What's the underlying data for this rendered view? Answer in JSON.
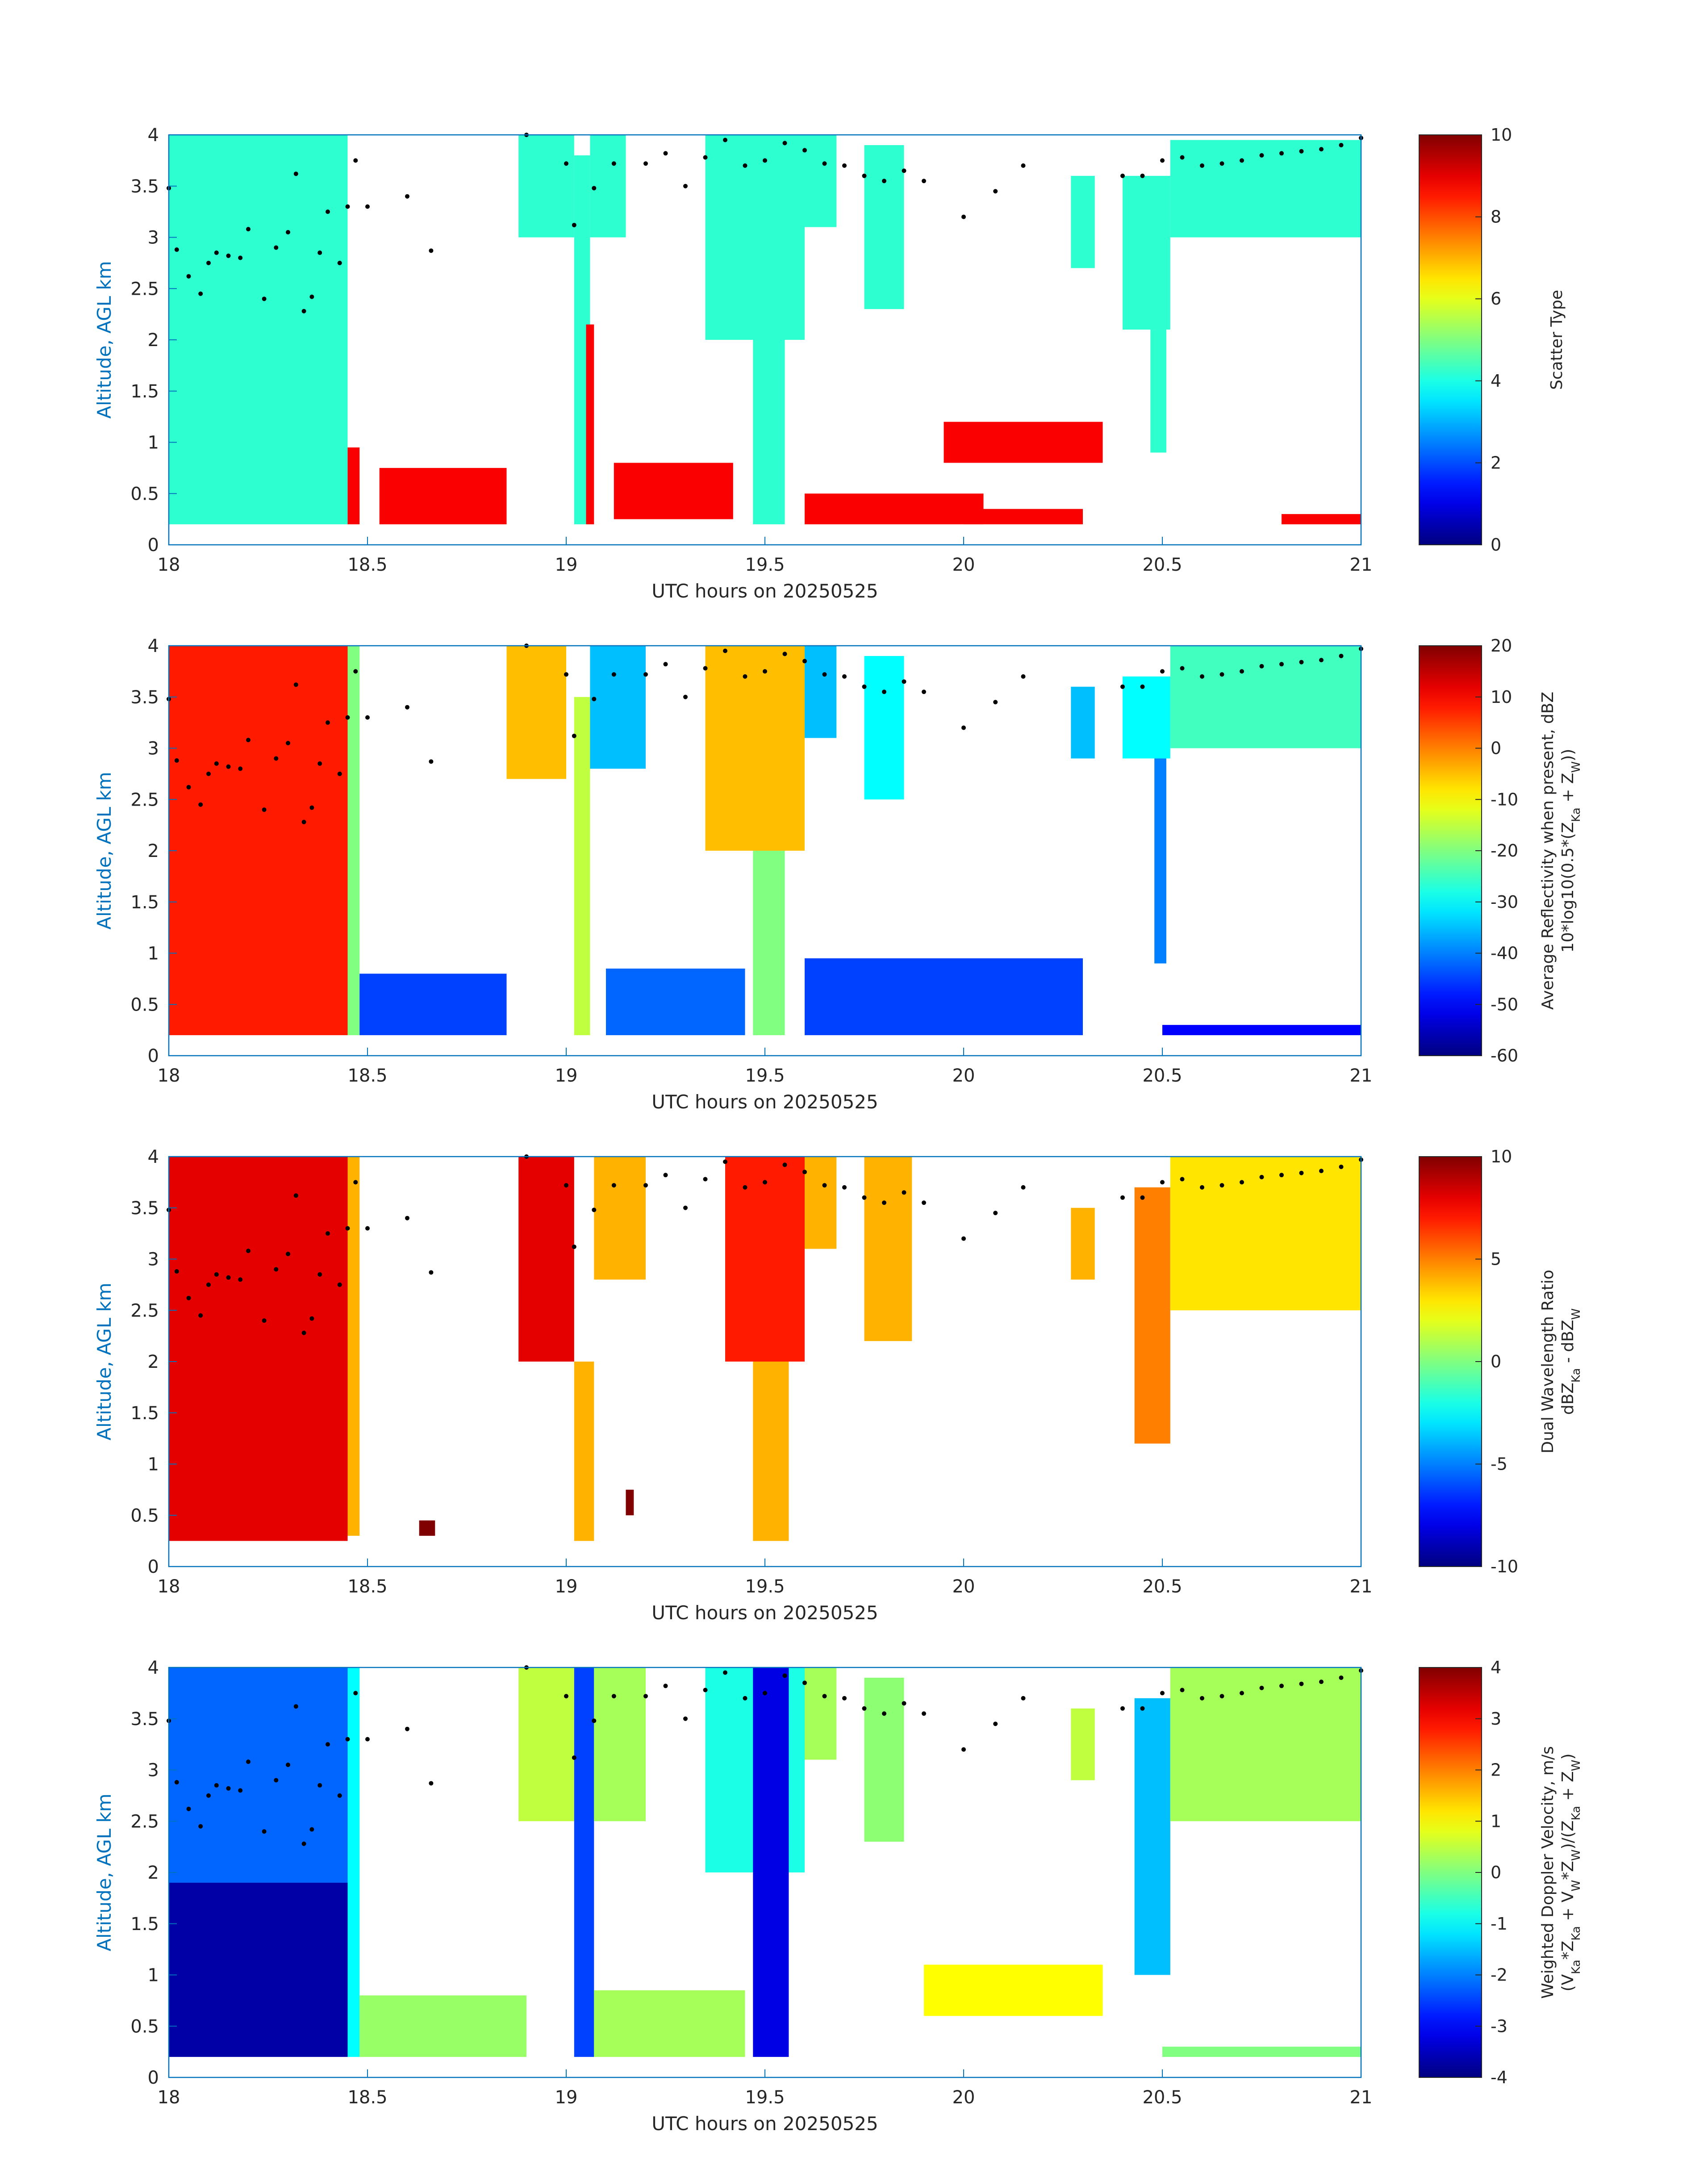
{
  "figure": {
    "x_ticks": [
      "18",
      "18.5",
      "19",
      "19.5",
      "20",
      "20.5",
      "21"
    ],
    "y_ticks": [
      "0",
      "0.5",
      "1",
      "1.5",
      "2",
      "2.5",
      "3",
      "3.5",
      "4"
    ],
    "xlabel": "UTC hours on 20250525",
    "ylabel": "Altitude, AGL km",
    "axis_color": "#0072BD",
    "cloud_top_dot_color": "#000000"
  },
  "panels": [
    {
      "cbar_label_lines": [
        "Scatter Type"
      ],
      "cbar_ticks": [
        "0",
        "2",
        "4",
        "6",
        "8",
        "10"
      ]
    },
    {
      "cbar_label_lines": [
        "Average Reflectivity when present, dBZ",
        "10*log10(0.5*(Z",
        "Ka",
        " + Z",
        "W",
        "))"
      ],
      "cbar_ticks": [
        "-60",
        "-50",
        "-40",
        "-30",
        "-20",
        "-10",
        "0",
        "10",
        "20"
      ]
    },
    {
      "cbar_label_lines": [
        "Dual Wavelength Ratio",
        "dBZ",
        "Ka",
        " - dBZ",
        "W"
      ],
      "cbar_ticks": [
        "-10",
        "-5",
        "0",
        "5",
        "10"
      ]
    },
    {
      "cbar_label_lines": [
        "Weighted Doppler Velocity, m/s",
        "(V",
        "Ka",
        "*Z",
        "Ka",
        " + V",
        "W",
        "*Z",
        "W",
        ")/(Z",
        "Ka",
        " + Z",
        "W",
        ")"
      ],
      "cbar_ticks": [
        "-4",
        "-3",
        "-2",
        "-1",
        "0",
        "1",
        "2",
        "3",
        "4"
      ]
    }
  ],
  "chart_data": [
    {
      "type": "heatmap",
      "title": "",
      "xlabel": "UTC hours on 20250525",
      "ylabel": "Altitude, AGL km",
      "xlim": [
        18,
        21
      ],
      "ylim": [
        0,
        4
      ],
      "clim": [
        0,
        10
      ],
      "colorbar_label": "Scatter Type",
      "colormap": "jet",
      "regions": [
        {
          "x": [
            18.0,
            18.45
          ],
          "y": [
            0.2,
            4.0
          ],
          "value": 4.2
        },
        {
          "x": [
            18.45,
            18.48
          ],
          "y": [
            0.2,
            0.95
          ],
          "value": 8.8
        },
        {
          "x": [
            18.53,
            18.85
          ],
          "y": [
            0.2,
            0.75
          ],
          "value": 8.8
        },
        {
          "x": [
            18.88,
            19.02
          ],
          "y": [
            3.0,
            4.0
          ],
          "value": 4.2
        },
        {
          "x": [
            19.02,
            19.06
          ],
          "y": [
            0.2,
            3.8
          ],
          "value": 4.2
        },
        {
          "x": [
            19.06,
            19.15
          ],
          "y": [
            3.0,
            4.0
          ],
          "value": 4.2
        },
        {
          "x": [
            19.05,
            19.07
          ],
          "y": [
            0.2,
            2.15
          ],
          "value": 8.8
        },
        {
          "x": [
            19.12,
            19.42
          ],
          "y": [
            0.25,
            0.8
          ],
          "value": 8.8
        },
        {
          "x": [
            19.35,
            19.6
          ],
          "y": [
            2.0,
            4.0
          ],
          "value": 4.2
        },
        {
          "x": [
            19.47,
            19.55
          ],
          "y": [
            0.2,
            2.0
          ],
          "value": 4.2
        },
        {
          "x": [
            19.6,
            19.68
          ],
          "y": [
            3.1,
            4.0
          ],
          "value": 4.2
        },
        {
          "x": [
            19.75,
            19.85
          ],
          "y": [
            2.3,
            3.9
          ],
          "value": 4.2
        },
        {
          "x": [
            19.6,
            20.05
          ],
          "y": [
            0.2,
            0.5
          ],
          "value": 8.8
        },
        {
          "x": [
            19.95,
            20.35
          ],
          "y": [
            0.8,
            1.2
          ],
          "value": 8.8
        },
        {
          "x": [
            20.0,
            20.3
          ],
          "y": [
            0.2,
            0.35
          ],
          "value": 8.8
        },
        {
          "x": [
            20.27,
            20.33
          ],
          "y": [
            2.7,
            3.6
          ],
          "value": 4.2
        },
        {
          "x": [
            20.4,
            20.52
          ],
          "y": [
            2.1,
            3.6
          ],
          "value": 4.2
        },
        {
          "x": [
            20.47,
            20.51
          ],
          "y": [
            0.9,
            2.1
          ],
          "value": 4.2
        },
        {
          "x": [
            20.52,
            21.0
          ],
          "y": [
            3.0,
            3.95
          ],
          "value": 4.2
        },
        {
          "x": [
            20.8,
            21.0
          ],
          "y": [
            0.2,
            0.3
          ],
          "value": 8.8
        }
      ],
      "cloud_top_dots": [
        [
          18.0,
          3.48
        ],
        [
          18.02,
          2.88
        ],
        [
          18.05,
          2.62
        ],
        [
          18.08,
          2.45
        ],
        [
          18.1,
          2.75
        ],
        [
          18.12,
          2.85
        ],
        [
          18.15,
          2.82
        ],
        [
          18.18,
          2.8
        ],
        [
          18.2,
          3.08
        ],
        [
          18.24,
          2.4
        ],
        [
          18.27,
          2.9
        ],
        [
          18.3,
          3.05
        ],
        [
          18.32,
          3.62
        ],
        [
          18.34,
          2.28
        ],
        [
          18.36,
          2.42
        ],
        [
          18.38,
          2.85
        ],
        [
          18.4,
          3.25
        ],
        [
          18.43,
          2.75
        ],
        [
          18.45,
          3.3
        ],
        [
          18.47,
          3.75
        ],
        [
          18.5,
          3.3
        ],
        [
          18.6,
          3.4
        ],
        [
          18.66,
          2.87
        ],
        [
          18.9,
          4.0
        ],
        [
          19.0,
          3.72
        ],
        [
          19.02,
          3.12
        ],
        [
          19.07,
          3.48
        ],
        [
          19.12,
          3.72
        ],
        [
          19.2,
          3.72
        ],
        [
          19.25,
          3.82
        ],
        [
          19.3,
          3.5
        ],
        [
          19.35,
          3.78
        ],
        [
          19.4,
          3.95
        ],
        [
          19.45,
          3.7
        ],
        [
          19.5,
          3.75
        ],
        [
          19.55,
          3.92
        ],
        [
          19.6,
          3.85
        ],
        [
          19.65,
          3.72
        ],
        [
          19.7,
          3.7
        ],
        [
          19.75,
          3.6
        ],
        [
          19.8,
          3.55
        ],
        [
          19.85,
          3.65
        ],
        [
          19.9,
          3.55
        ],
        [
          20.0,
          3.2
        ],
        [
          20.08,
          3.45
        ],
        [
          20.15,
          3.7
        ],
        [
          20.4,
          3.6
        ],
        [
          20.45,
          3.6
        ],
        [
          20.5,
          3.75
        ],
        [
          20.55,
          3.78
        ],
        [
          20.6,
          3.7
        ],
        [
          20.65,
          3.72
        ],
        [
          20.7,
          3.75
        ],
        [
          20.75,
          3.8
        ],
        [
          20.8,
          3.82
        ],
        [
          20.85,
          3.84
        ],
        [
          20.9,
          3.86
        ],
        [
          20.95,
          3.9
        ],
        [
          21.0,
          3.97
        ]
      ]
    },
    {
      "type": "heatmap",
      "title": "",
      "xlabel": "UTC hours on 20250525",
      "ylabel": "Altitude, AGL km",
      "xlim": [
        18,
        21
      ],
      "ylim": [
        0,
        4
      ],
      "clim": [
        -60,
        20
      ],
      "colorbar_label": "Average Reflectivity when present, dBZ 10*log10(0.5*(ZKa + ZW))",
      "colormap": "jet",
      "regions": [
        {
          "x": [
            18.0,
            18.45
          ],
          "y": [
            0.2,
            4.0
          ],
          "value": 8
        },
        {
          "x": [
            18.45,
            18.48
          ],
          "y": [
            0.2,
            4.0
          ],
          "value": -20
        },
        {
          "x": [
            18.48,
            18.85
          ],
          "y": [
            0.2,
            0.8
          ],
          "value": -45
        },
        {
          "x": [
            18.85,
            19.0
          ],
          "y": [
            2.7,
            4.0
          ],
          "value": -5
        },
        {
          "x": [
            19.02,
            19.06
          ],
          "y": [
            0.2,
            3.5
          ],
          "value": -15
        },
        {
          "x": [
            19.06,
            19.2
          ],
          "y": [
            2.8,
            4.0
          ],
          "value": -35
        },
        {
          "x": [
            19.1,
            19.45
          ],
          "y": [
            0.2,
            0.85
          ],
          "value": -42
        },
        {
          "x": [
            19.35,
            19.6
          ],
          "y": [
            2.0,
            4.0
          ],
          "value": -5
        },
        {
          "x": [
            19.47,
            19.55
          ],
          "y": [
            0.2,
            2.0
          ],
          "value": -20
        },
        {
          "x": [
            19.6,
            19.68
          ],
          "y": [
            3.1,
            4.0
          ],
          "value": -35
        },
        {
          "x": [
            19.75,
            19.85
          ],
          "y": [
            2.5,
            3.9
          ],
          "value": -30
        },
        {
          "x": [
            19.6,
            20.3
          ],
          "y": [
            0.2,
            0.95
          ],
          "value": -45
        },
        {
          "x": [
            20.27,
            20.33
          ],
          "y": [
            2.9,
            3.6
          ],
          "value": -35
        },
        {
          "x": [
            20.4,
            20.52
          ],
          "y": [
            2.9,
            3.7
          ],
          "value": -30
        },
        {
          "x": [
            20.48,
            20.51
          ],
          "y": [
            0.9,
            2.9
          ],
          "value": -40
        },
        {
          "x": [
            20.52,
            21.0
          ],
          "y": [
            3.0,
            4.0
          ],
          "value": -25
        },
        {
          "x": [
            20.5,
            21.0
          ],
          "y": [
            0.2,
            0.3
          ],
          "value": -50
        }
      ]
    },
    {
      "type": "heatmap",
      "title": "",
      "xlabel": "UTC hours on 20250525",
      "ylabel": "Altitude, AGL km",
      "xlim": [
        18,
        21
      ],
      "ylim": [
        0,
        4
      ],
      "clim": [
        -10,
        10
      ],
      "colorbar_label": "Dual Wavelength Ratio dBZKa - dBZW",
      "colormap": "jet",
      "regions": [
        {
          "x": [
            18.0,
            18.45
          ],
          "y": [
            0.25,
            4.0
          ],
          "value": 8
        },
        {
          "x": [
            18.45,
            18.48
          ],
          "y": [
            0.3,
            4.0
          ],
          "value": 4
        },
        {
          "x": [
            18.63,
            18.67
          ],
          "y": [
            0.3,
            0.45
          ],
          "value": 10
        },
        {
          "x": [
            18.88,
            19.02
          ],
          "y": [
            2.0,
            4.0
          ],
          "value": 8
        },
        {
          "x": [
            19.02,
            19.07
          ],
          "y": [
            0.25,
            2.0
          ],
          "value": 4
        },
        {
          "x": [
            19.07,
            19.2
          ],
          "y": [
            2.8,
            4.0
          ],
          "value": 4
        },
        {
          "x": [
            19.15,
            19.17
          ],
          "y": [
            0.5,
            0.75
          ],
          "value": 10
        },
        {
          "x": [
            19.4,
            19.6
          ],
          "y": [
            2.0,
            4.0
          ],
          "value": 7
        },
        {
          "x": [
            19.47,
            19.56
          ],
          "y": [
            0.25,
            2.0
          ],
          "value": 4
        },
        {
          "x": [
            19.6,
            19.68
          ],
          "y": [
            3.1,
            4.0
          ],
          "value": 4
        },
        {
          "x": [
            19.75,
            19.87
          ],
          "y": [
            2.2,
            4.0
          ],
          "value": 4
        },
        {
          "x": [
            20.27,
            20.33
          ],
          "y": [
            2.8,
            3.5
          ],
          "value": 4
        },
        {
          "x": [
            20.43,
            20.52
          ],
          "y": [
            1.2,
            3.7
          ],
          "value": 5
        },
        {
          "x": [
            20.52,
            21.0
          ],
          "y": [
            2.5,
            4.0
          ],
          "value": 3
        }
      ]
    },
    {
      "type": "heatmap",
      "title": "",
      "xlabel": "UTC hours on 20250525",
      "ylabel": "Altitude, AGL km",
      "xlim": [
        18,
        21
      ],
      "ylim": [
        0,
        4
      ],
      "clim": [
        -4,
        4
      ],
      "colorbar_label": "Weighted Doppler Velocity, m/s (VKa*ZKa + VW*ZW)/(ZKa + ZW)",
      "colormap": "jet",
      "regions": [
        {
          "x": [
            18.0,
            18.45
          ],
          "y": [
            1.9,
            4.0
          ],
          "value": -2.2
        },
        {
          "x": [
            18.0,
            18.45
          ],
          "y": [
            0.2,
            1.9
          ],
          "value": -3.7
        },
        {
          "x": [
            18.45,
            18.48
          ],
          "y": [
            0.2,
            4.0
          ],
          "value": -1.0
        },
        {
          "x": [
            18.48,
            18.9
          ],
          "y": [
            0.2,
            0.8
          ],
          "value": 0.2
        },
        {
          "x": [
            18.88,
            19.02
          ],
          "y": [
            2.5,
            4.0
          ],
          "value": 0.5
        },
        {
          "x": [
            19.02,
            19.07
          ],
          "y": [
            0.2,
            4.0
          ],
          "value": -2.5
        },
        {
          "x": [
            19.07,
            19.2
          ],
          "y": [
            2.5,
            4.0
          ],
          "value": 0.3
        },
        {
          "x": [
            19.07,
            19.45
          ],
          "y": [
            0.2,
            0.85
          ],
          "value": 0.3
        },
        {
          "x": [
            19.35,
            19.6
          ],
          "y": [
            2.0,
            4.0
          ],
          "value": -0.8
        },
        {
          "x": [
            19.47,
            19.56
          ],
          "y": [
            0.2,
            4.0
          ],
          "value": -3.2
        },
        {
          "x": [
            19.6,
            19.68
          ],
          "y": [
            3.1,
            4.0
          ],
          "value": 0.3
        },
        {
          "x": [
            19.75,
            19.85
          ],
          "y": [
            2.3,
            3.9
          ],
          "value": 0.1
        },
        {
          "x": [
            19.9,
            20.35
          ],
          "y": [
            0.6,
            1.1
          ],
          "value": 1.0
        },
        {
          "x": [
            20.27,
            20.33
          ],
          "y": [
            2.9,
            3.6
          ],
          "value": 0.5
        },
        {
          "x": [
            20.43,
            20.52
          ],
          "y": [
            1.0,
            3.7
          ],
          "value": -1.5
        },
        {
          "x": [
            20.52,
            21.0
          ],
          "y": [
            2.5,
            4.0
          ],
          "value": 0.3
        },
        {
          "x": [
            20.5,
            21.0
          ],
          "y": [
            0.2,
            0.3
          ],
          "value": 0.0
        }
      ]
    }
  ]
}
